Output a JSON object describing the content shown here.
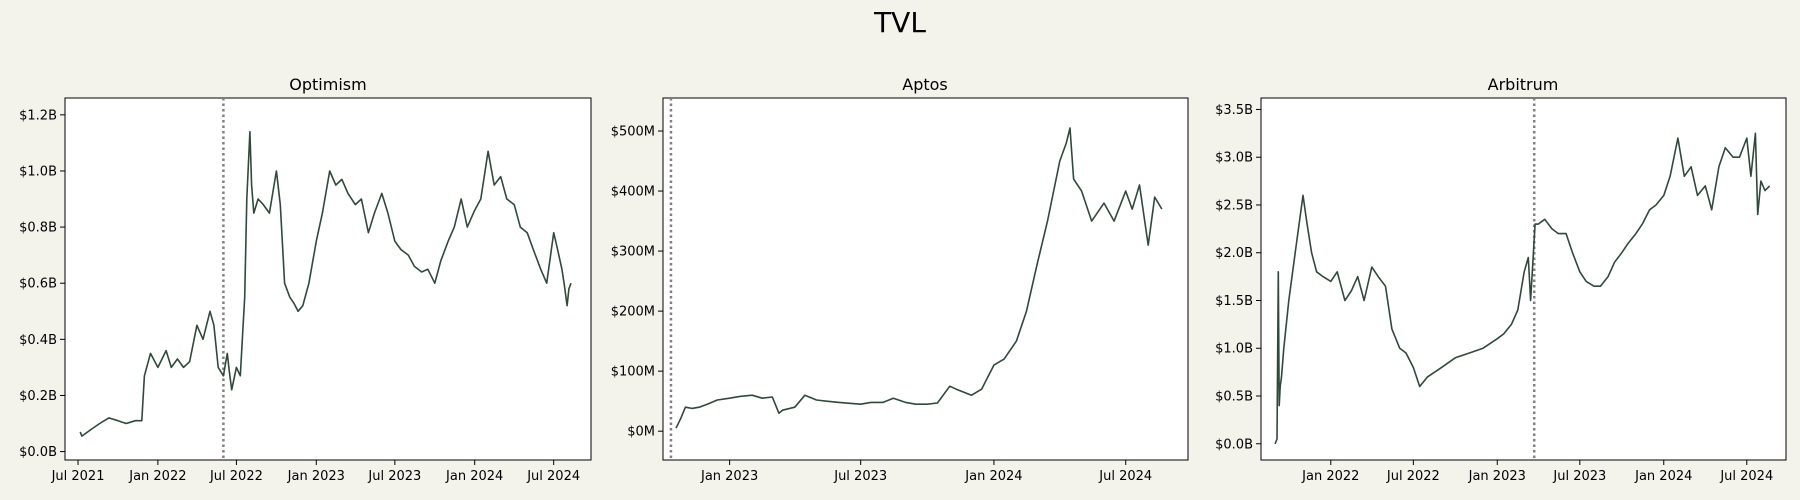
{
  "figure": {
    "title": "TVL"
  },
  "colors": {
    "line": "#2f4a3a",
    "marker": "#808080",
    "background": "#f3f3ec"
  },
  "chart_data": [
    {
      "type": "line",
      "title": "Optimism",
      "x_type": "date",
      "xlim": [
        "2021-06-01",
        "2024-09-25"
      ],
      "ylim": [
        -0.03,
        1.26
      ],
      "x_ticks": [
        {
          "value": "2021-07-01",
          "label": "Jul 2021"
        },
        {
          "value": "2022-01-01",
          "label": "Jan 2022"
        },
        {
          "value": "2022-07-01",
          "label": "Jul 2022"
        },
        {
          "value": "2023-01-01",
          "label": "Jan 2023"
        },
        {
          "value": "2023-07-01",
          "label": "Jul 2023"
        },
        {
          "value": "2024-01-01",
          "label": "Jan 2024"
        },
        {
          "value": "2024-07-01",
          "label": "Jul 2024"
        }
      ],
      "y_ticks": [
        {
          "value": 0.0,
          "label": "$0.0B"
        },
        {
          "value": 0.2,
          "label": "$0.2B"
        },
        {
          "value": 0.4,
          "label": "$0.4B"
        },
        {
          "value": 0.6,
          "label": "$0.6B"
        },
        {
          "value": 0.8,
          "label": "$0.8B"
        },
        {
          "value": 1.0,
          "label": "$1.0B"
        },
        {
          "value": 1.2,
          "label": "$1.2B"
        }
      ],
      "marker_date": "2022-06-01",
      "series": [
        {
          "x": [
            "2021-07-06",
            "2021-07-10",
            "2021-08-01",
            "2021-08-20",
            "2021-09-10",
            "2021-10-01",
            "2021-10-20",
            "2021-11-10",
            "2021-11-25",
            "2021-12-01",
            "2021-12-15",
            "2022-01-01",
            "2022-01-20",
            "2022-02-01",
            "2022-02-15",
            "2022-03-01",
            "2022-03-15",
            "2022-04-01",
            "2022-04-15",
            "2022-05-01",
            "2022-05-10",
            "2022-05-20",
            "2022-06-01",
            "2022-06-10",
            "2022-06-15",
            "2022-06-20",
            "2022-07-01",
            "2022-07-10",
            "2022-07-20",
            "2022-07-25",
            "2022-08-01",
            "2022-08-05",
            "2022-08-10",
            "2022-08-20",
            "2022-09-01",
            "2022-09-15",
            "2022-10-01",
            "2022-10-10",
            "2022-10-20",
            "2022-11-01",
            "2022-11-10",
            "2022-11-20",
            "2022-12-01",
            "2022-12-15",
            "2023-01-01",
            "2023-01-15",
            "2023-02-01",
            "2023-02-15",
            "2023-03-01",
            "2023-03-15",
            "2023-04-01",
            "2023-04-15",
            "2023-05-01",
            "2023-05-15",
            "2023-06-01",
            "2023-06-15",
            "2023-07-01",
            "2023-07-15",
            "2023-08-01",
            "2023-08-15",
            "2023-09-01",
            "2023-09-15",
            "2023-10-01",
            "2023-10-15",
            "2023-11-01",
            "2023-11-15",
            "2023-12-01",
            "2023-12-15",
            "2024-01-01",
            "2024-01-15",
            "2024-02-01",
            "2024-02-15",
            "2024-03-01",
            "2024-03-15",
            "2024-04-01",
            "2024-04-15",
            "2024-05-01",
            "2024-05-15",
            "2024-06-01",
            "2024-06-15",
            "2024-07-01",
            "2024-07-10",
            "2024-07-20",
            "2024-07-25",
            "2024-08-01",
            "2024-08-05",
            "2024-08-10"
          ],
          "y": [
            0.07,
            0.055,
            0.08,
            0.1,
            0.12,
            0.11,
            0.1,
            0.11,
            0.11,
            0.27,
            0.35,
            0.3,
            0.36,
            0.3,
            0.33,
            0.3,
            0.32,
            0.45,
            0.4,
            0.5,
            0.45,
            0.3,
            0.27,
            0.35,
            0.28,
            0.22,
            0.3,
            0.27,
            0.55,
            0.9,
            1.14,
            0.95,
            0.85,
            0.9,
            0.88,
            0.85,
            1.0,
            0.88,
            0.6,
            0.55,
            0.53,
            0.5,
            0.52,
            0.6,
            0.75,
            0.85,
            1.0,
            0.95,
            0.97,
            0.92,
            0.88,
            0.9,
            0.78,
            0.85,
            0.92,
            0.85,
            0.75,
            0.72,
            0.7,
            0.66,
            0.64,
            0.65,
            0.6,
            0.68,
            0.75,
            0.8,
            0.9,
            0.8,
            0.86,
            0.9,
            1.07,
            0.95,
            0.98,
            0.9,
            0.88,
            0.8,
            0.78,
            0.72,
            0.65,
            0.6,
            0.78,
            0.72,
            0.65,
            0.6,
            0.52,
            0.58,
            0.6
          ]
        }
      ]
    },
    {
      "type": "line",
      "title": "Aptos",
      "x_type": "date",
      "xlim": [
        "2022-10-01",
        "2024-09-25"
      ],
      "ylim": [
        -48,
        555
      ],
      "x_ticks": [
        {
          "value": "2023-01-01",
          "label": "Jan 2023"
        },
        {
          "value": "2023-07-01",
          "label": "Jul 2023"
        },
        {
          "value": "2024-01-01",
          "label": "Jan 2024"
        },
        {
          "value": "2024-07-01",
          "label": "Jul 2024"
        }
      ],
      "y_ticks": [
        {
          "value": 0,
          "label": "$0M"
        },
        {
          "value": 100,
          "label": "$100M"
        },
        {
          "value": 200,
          "label": "$200M"
        },
        {
          "value": 300,
          "label": "$300M"
        },
        {
          "value": 400,
          "label": "$400M"
        },
        {
          "value": 500,
          "label": "$500M"
        }
      ],
      "marker_date": "2022-10-12",
      "series": [
        {
          "x": [
            "2022-10-19",
            "2022-10-25",
            "2022-11-01",
            "2022-11-10",
            "2022-11-20",
            "2022-12-01",
            "2022-12-15",
            "2023-01-01",
            "2023-01-15",
            "2023-02-01",
            "2023-02-15",
            "2023-03-01",
            "2023-03-10",
            "2023-03-15",
            "2023-04-01",
            "2023-04-15",
            "2023-05-01",
            "2023-05-15",
            "2023-06-01",
            "2023-07-01",
            "2023-07-15",
            "2023-08-01",
            "2023-08-15",
            "2023-09-01",
            "2023-09-15",
            "2023-10-01",
            "2023-10-15",
            "2023-11-01",
            "2023-11-10",
            "2023-12-01",
            "2023-12-15",
            "2024-01-01",
            "2024-01-15",
            "2024-02-01",
            "2024-02-15",
            "2024-03-01",
            "2024-03-15",
            "2024-04-01",
            "2024-04-10",
            "2024-04-15",
            "2024-04-20",
            "2024-05-01",
            "2024-05-15",
            "2024-06-01",
            "2024-06-15",
            "2024-07-01",
            "2024-07-10",
            "2024-07-20",
            "2024-08-01",
            "2024-08-10",
            "2024-08-20"
          ],
          "y": [
            5,
            20,
            40,
            38,
            40,
            45,
            52,
            55,
            58,
            60,
            55,
            57,
            30,
            35,
            40,
            60,
            52,
            50,
            48,
            45,
            48,
            48,
            55,
            48,
            45,
            45,
            47,
            75,
            70,
            60,
            70,
            110,
            120,
            150,
            200,
            280,
            350,
            450,
            480,
            505,
            420,
            400,
            350,
            380,
            350,
            400,
            370,
            410,
            310,
            390,
            370
          ]
        }
      ]
    },
    {
      "type": "line",
      "title": "Arbitrum",
      "x_type": "date",
      "xlim": [
        "2021-08-01",
        "2024-09-25"
      ],
      "ylim": [
        -0.17,
        3.62
      ],
      "x_ticks": [
        {
          "value": "2022-01-01",
          "label": "Jan 2022"
        },
        {
          "value": "2022-07-01",
          "label": "Jul 2022"
        },
        {
          "value": "2023-01-01",
          "label": "Jan 2023"
        },
        {
          "value": "2023-07-01",
          "label": "Jul 2023"
        },
        {
          "value": "2024-01-01",
          "label": "Jan 2024"
        },
        {
          "value": "2024-07-01",
          "label": "Jul 2024"
        }
      ],
      "y_ticks": [
        {
          "value": 0.0,
          "label": "$0.0B"
        },
        {
          "value": 0.5,
          "label": "$0.5B"
        },
        {
          "value": 1.0,
          "label": "$1.0B"
        },
        {
          "value": 1.5,
          "label": "$1.5B"
        },
        {
          "value": 2.0,
          "label": "$2.0B"
        },
        {
          "value": 2.5,
          "label": "$2.5B"
        },
        {
          "value": 3.0,
          "label": "$3.0B"
        },
        {
          "value": 3.5,
          "label": "$3.5B"
        }
      ],
      "marker_date": "2023-03-23",
      "series": [
        {
          "x": [
            "2021-09-01",
            "2021-09-05",
            "2021-09-08",
            "2021-09-10",
            "2021-09-12",
            "2021-09-15",
            "2021-09-20",
            "2021-10-01",
            "2021-10-15",
            "2021-11-01",
            "2021-11-10",
            "2021-11-20",
            "2021-12-01",
            "2021-12-15",
            "2022-01-01",
            "2022-01-15",
            "2022-02-01",
            "2022-02-15",
            "2022-03-01",
            "2022-03-15",
            "2022-04-01",
            "2022-04-15",
            "2022-05-01",
            "2022-05-15",
            "2022-06-01",
            "2022-06-15",
            "2022-07-01",
            "2022-07-15",
            "2022-08-01",
            "2022-09-01",
            "2022-10-01",
            "2022-11-01",
            "2022-12-01",
            "2023-01-01",
            "2023-01-15",
            "2023-02-01",
            "2023-02-15",
            "2023-03-01",
            "2023-03-10",
            "2023-03-15",
            "2023-03-25",
            "2023-04-01",
            "2023-04-15",
            "2023-05-01",
            "2023-05-15",
            "2023-06-01",
            "2023-06-15",
            "2023-07-01",
            "2023-07-15",
            "2023-08-01",
            "2023-08-15",
            "2023-09-01",
            "2023-09-15",
            "2023-10-01",
            "2023-10-15",
            "2023-11-01",
            "2023-11-15",
            "2023-12-01",
            "2023-12-15",
            "2024-01-01",
            "2024-01-15",
            "2024-02-01",
            "2024-02-15",
            "2024-03-01",
            "2024-03-15",
            "2024-04-01",
            "2024-04-15",
            "2024-05-01",
            "2024-05-15",
            "2024-06-01",
            "2024-06-15",
            "2024-07-01",
            "2024-07-10",
            "2024-07-20",
            "2024-07-25",
            "2024-08-01",
            "2024-08-10",
            "2024-08-20"
          ],
          "y": [
            0.0,
            0.05,
            1.8,
            0.4,
            0.6,
            0.7,
            1.0,
            1.5,
            2.0,
            2.6,
            2.3,
            2.0,
            1.8,
            1.75,
            1.7,
            1.8,
            1.5,
            1.6,
            1.75,
            1.5,
            1.85,
            1.75,
            1.65,
            1.2,
            1.0,
            0.95,
            0.8,
            0.6,
            0.7,
            0.8,
            0.9,
            0.95,
            1.0,
            1.1,
            1.15,
            1.25,
            1.4,
            1.8,
            1.95,
            1.5,
            2.3,
            2.3,
            2.35,
            2.25,
            2.2,
            2.2,
            2.0,
            1.8,
            1.7,
            1.65,
            1.65,
            1.75,
            1.9,
            2.0,
            2.1,
            2.2,
            2.3,
            2.45,
            2.5,
            2.6,
            2.8,
            3.2,
            2.8,
            2.9,
            2.6,
            2.7,
            2.45,
            2.9,
            3.1,
            3.0,
            3.0,
            3.2,
            2.8,
            3.25,
            2.4,
            2.75,
            2.65,
            2.7
          ]
        }
      ]
    }
  ]
}
